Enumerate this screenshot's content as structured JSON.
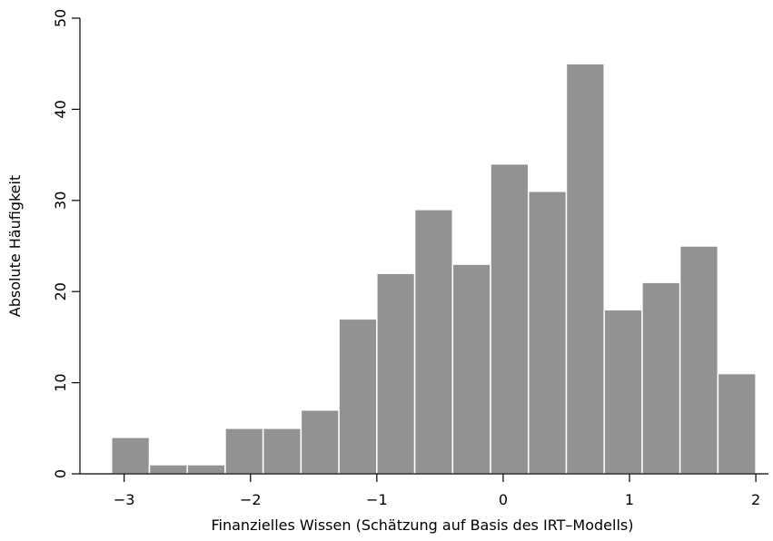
{
  "chart_data": {
    "type": "histogram",
    "xlabel": "Finanzielles Wissen (Schätzung auf Basis des IRT–Modells)",
    "ylabel": "Absolute Häufigkeit",
    "xlim": [
      -3.35,
      2.1
    ],
    "ylim": [
      0,
      50
    ],
    "xticks": [
      -3,
      -2,
      -1,
      0,
      1,
      2
    ],
    "xtick_labels": [
      "−3",
      "−2",
      "−1",
      "0",
      "1",
      "2"
    ],
    "yticks": [
      0,
      10,
      20,
      30,
      40,
      50
    ],
    "ytick_labels": [
      "0",
      "10",
      "20",
      "30",
      "40",
      "50"
    ],
    "bar_color": "#929294",
    "bar_edge_color": "#ffffff",
    "bins": [
      {
        "x0": -3.1,
        "x1": -2.8,
        "value": 4
      },
      {
        "x0": -2.8,
        "x1": -2.5,
        "value": 1
      },
      {
        "x0": -2.5,
        "x1": -2.2,
        "value": 1
      },
      {
        "x0": -2.2,
        "x1": -1.9,
        "value": 5
      },
      {
        "x0": -1.9,
        "x1": -1.6,
        "value": 5
      },
      {
        "x0": -1.6,
        "x1": -1.3,
        "value": 7
      },
      {
        "x0": -1.3,
        "x1": -1.0,
        "value": 17
      },
      {
        "x0": -1.0,
        "x1": -0.7,
        "value": 22
      },
      {
        "x0": -0.7,
        "x1": -0.4,
        "value": 29
      },
      {
        "x0": -0.4,
        "x1": -0.1,
        "value": 23
      },
      {
        "x0": -0.1,
        "x1": 0.2,
        "value": 34
      },
      {
        "x0": 0.2,
        "x1": 0.5,
        "value": 31
      },
      {
        "x0": 0.5,
        "x1": 0.8,
        "value": 45
      },
      {
        "x0": 0.8,
        "x1": 1.1,
        "value": 18
      },
      {
        "x0": 1.1,
        "x1": 1.4,
        "value": 21
      },
      {
        "x0": 1.4,
        "x1": 1.7,
        "value": 25
      },
      {
        "x0": 1.7,
        "x1": 2.0,
        "value": 11
      }
    ]
  }
}
